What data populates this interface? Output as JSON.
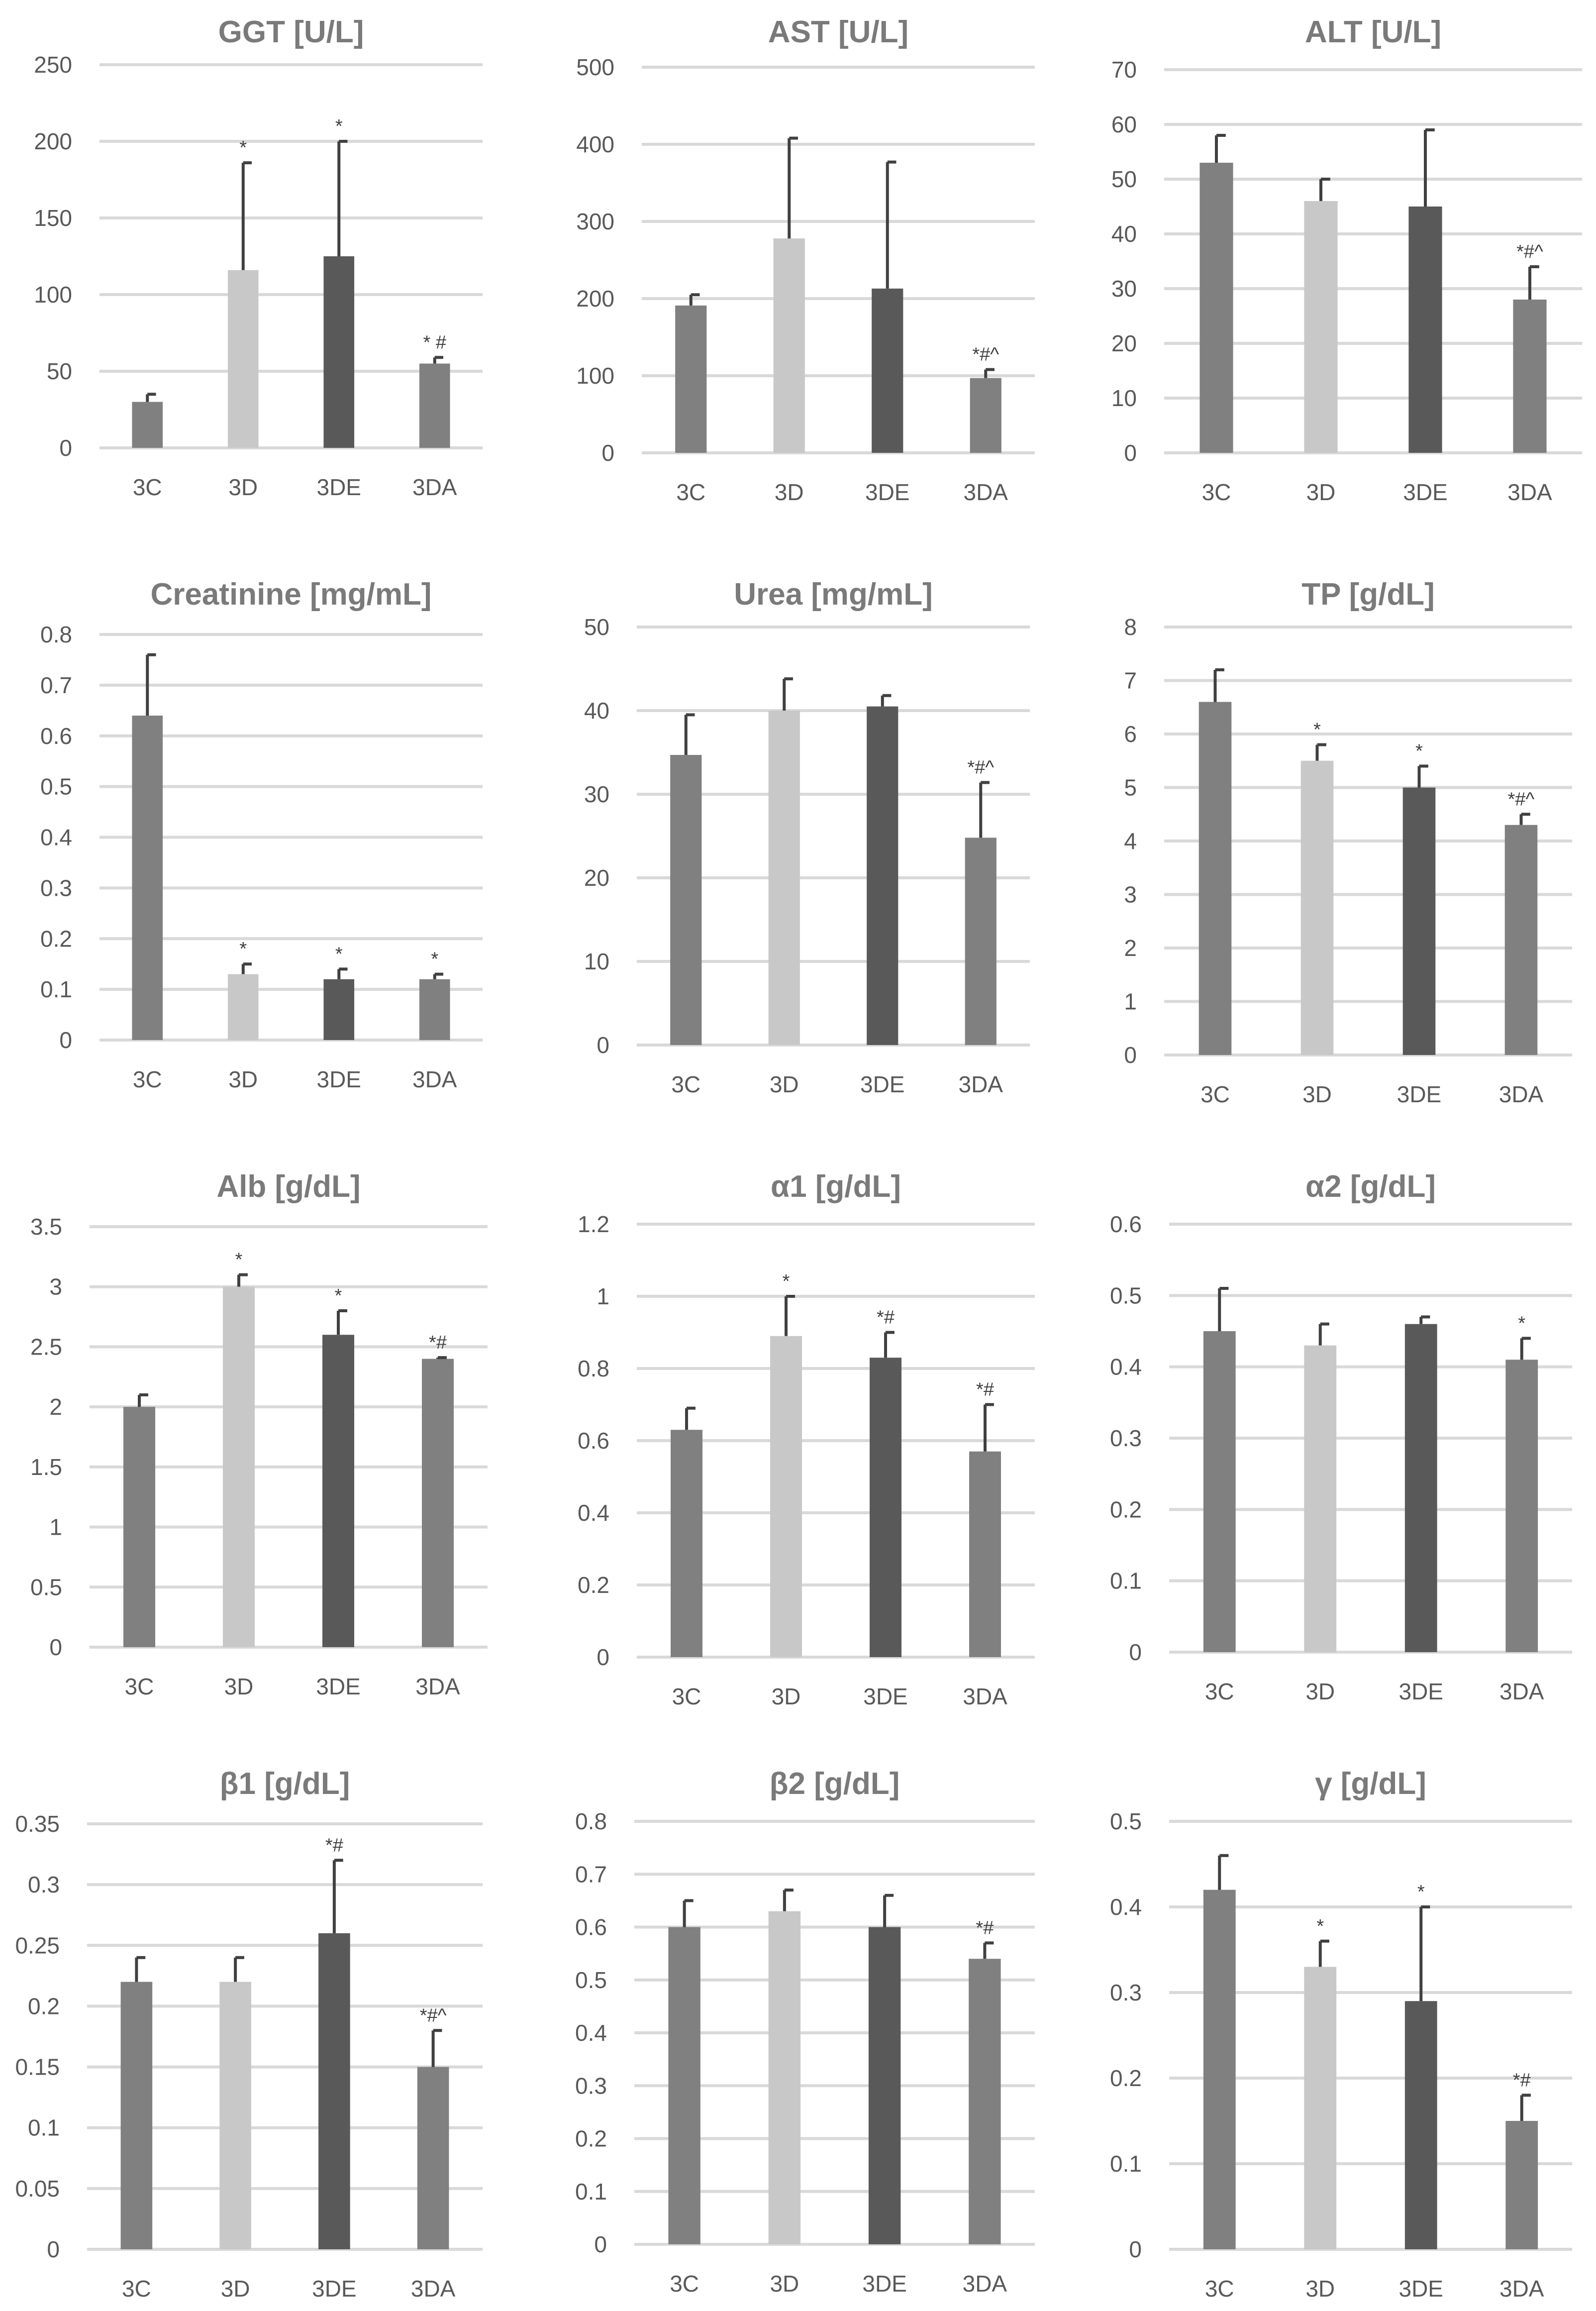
{
  "chart_data": [
    {
      "type": "bar",
      "title": "GGT [U/L]",
      "categories": [
        "3C",
        "3D",
        "3DE",
        "3DA"
      ],
      "values": [
        30,
        116,
        125,
        55
      ],
      "errors": [
        5,
        70,
        75,
        4
      ],
      "annotations": [
        "",
        "*",
        "*",
        "* #"
      ],
      "ylim": [
        0,
        250
      ],
      "yticks": [
        0,
        50,
        100,
        150,
        200,
        250
      ]
    },
    {
      "type": "bar",
      "title": "AST [U/L]",
      "categories": [
        "3C",
        "3D",
        "3DE",
        "3DA"
      ],
      "values": [
        191,
        278,
        213,
        97
      ],
      "errors": [
        14,
        130,
        164,
        11
      ],
      "annotations": [
        "",
        "",
        "",
        "*#^"
      ],
      "ylim": [
        0,
        500
      ],
      "yticks": [
        0,
        100,
        200,
        300,
        400,
        500
      ]
    },
    {
      "type": "bar",
      "title": "ALT [U/L]",
      "categories": [
        "3C",
        "3D",
        "3DE",
        "3DA"
      ],
      "values": [
        53,
        46,
        45,
        28
      ],
      "errors": [
        5,
        4,
        14,
        6
      ],
      "annotations": [
        "",
        "",
        "",
        "*#^"
      ],
      "ylim": [
        0,
        70
      ],
      "yticks": [
        0,
        10,
        20,
        30,
        40,
        50,
        60,
        70
      ]
    },
    {
      "type": "bar",
      "title": "Creatinine [mg/mL]",
      "categories": [
        "3C",
        "3D",
        "3DE",
        "3DA"
      ],
      "values": [
        0.64,
        0.13,
        0.12,
        0.12
      ],
      "errors": [
        0.12,
        0.02,
        0.02,
        0.01
      ],
      "annotations": [
        "",
        "*",
        "*",
        "*"
      ],
      "ylim": [
        0,
        0.8
      ],
      "yticks": [
        "0",
        "0.1",
        "0.2",
        "0.3",
        "0.4",
        "0.5",
        "0.6",
        "0.7",
        "0.8"
      ]
    },
    {
      "type": "bar",
      "title": "Urea [mg/mL]",
      "categories": [
        "3C",
        "3D",
        "3DE",
        "3DA"
      ],
      "values": [
        34.7,
        40,
        40.5,
        24.8
      ],
      "errors": [
        4.8,
        3.8,
        1.3,
        6.6
      ],
      "annotations": [
        "",
        "",
        "",
        "*#^"
      ],
      "ylim": [
        0,
        50
      ],
      "yticks": [
        0,
        10,
        20,
        30,
        40,
        50
      ]
    },
    {
      "type": "bar",
      "title": "TP [g/dL]",
      "categories": [
        "3C",
        "3D",
        "3DE",
        "3DA"
      ],
      "values": [
        6.6,
        5.5,
        5.0,
        4.3
      ],
      "errors": [
        0.6,
        0.3,
        0.4,
        0.2
      ],
      "annotations": [
        "",
        "*",
        "*",
        "*#^"
      ],
      "ylim": [
        0,
        8
      ],
      "yticks": [
        0,
        1,
        2,
        3,
        4,
        5,
        6,
        7,
        8
      ]
    },
    {
      "type": "bar",
      "title": "Alb [g/dL]",
      "categories": [
        "3C",
        "3D",
        "3DE",
        "3DA"
      ],
      "values": [
        2.0,
        3.0,
        2.6,
        2.4
      ],
      "errors": [
        0.1,
        0.1,
        0.2,
        0.01
      ],
      "annotations": [
        "",
        "*",
        "*",
        "*#"
      ],
      "ylim": [
        0,
        3.5
      ],
      "yticks": [
        "0",
        "0.5",
        "1",
        "1.5",
        "2",
        "2.5",
        "3",
        "3.5"
      ]
    },
    {
      "type": "bar",
      "title": "α1 [g/dL]",
      "categories": [
        "3C",
        "3D",
        "3DE",
        "3DA"
      ],
      "values": [
        0.63,
        0.89,
        0.83,
        0.57
      ],
      "errors": [
        0.06,
        0.11,
        0.07,
        0.13
      ],
      "annotations": [
        "",
        "*",
        "*#",
        "*#"
      ],
      "ylim": [
        0,
        1.2
      ],
      "yticks": [
        "0",
        "0.2",
        "0.4",
        "0.6",
        "0.8",
        "1",
        "1.2"
      ]
    },
    {
      "type": "bar",
      "title": "α2 [g/dL]",
      "categories": [
        "3C",
        "3D",
        "3DE",
        "3DA"
      ],
      "values": [
        0.45,
        0.43,
        0.46,
        0.41
      ],
      "errors": [
        0.06,
        0.03,
        0.01,
        0.03
      ],
      "annotations": [
        "",
        "",
        "",
        "*"
      ],
      "ylim": [
        0,
        0.6
      ],
      "yticks": [
        "0",
        "0.1",
        "0.2",
        "0.3",
        "0.4",
        "0.5",
        "0.6"
      ]
    },
    {
      "type": "bar",
      "title": "β1 [g/dL]",
      "categories": [
        "3C",
        "3D",
        "3DE",
        "3DA"
      ],
      "values": [
        0.22,
        0.22,
        0.26,
        0.15
      ],
      "errors": [
        0.02,
        0.02,
        0.06,
        0.03
      ],
      "annotations": [
        "",
        "",
        "*#",
        "*#^"
      ],
      "ylim": [
        0,
        0.35
      ],
      "yticks": [
        "0",
        "0.05",
        "0.1",
        "0.15",
        "0.2",
        "0.25",
        "0.3",
        "0.35"
      ]
    },
    {
      "type": "bar",
      "title": "β2 [g/dL]",
      "categories": [
        "3C",
        "3D",
        "3DE",
        "3DA"
      ],
      "values": [
        0.6,
        0.63,
        0.6,
        0.54
      ],
      "errors": [
        0.05,
        0.04,
        0.06,
        0.03
      ],
      "annotations": [
        "",
        "",
        "",
        "*#"
      ],
      "ylim": [
        0,
        0.8
      ],
      "yticks": [
        "0",
        "0.1",
        "0.2",
        "0.3",
        "0.4",
        "0.5",
        "0.6",
        "0.7",
        "0.8"
      ]
    },
    {
      "type": "bar",
      "title": "γ [g/dL]",
      "categories": [
        "3C",
        "3D",
        "3DE",
        "3DA"
      ],
      "values": [
        0.42,
        0.33,
        0.29,
        0.15
      ],
      "errors": [
        0.04,
        0.03,
        0.11,
        0.03
      ],
      "annotations": [
        "",
        "*",
        "*",
        "*#"
      ],
      "ylim": [
        0,
        0.5
      ],
      "yticks": [
        "0",
        "0.1",
        "0.2",
        "0.3",
        "0.4",
        "0.5"
      ]
    }
  ],
  "colors": {
    "3C": "#808080",
    "3D": "#c8c8c8",
    "3DE": "#595959",
    "3DA": "#808080",
    "grid": "#d9d9d9",
    "error_bar": "#404040"
  }
}
